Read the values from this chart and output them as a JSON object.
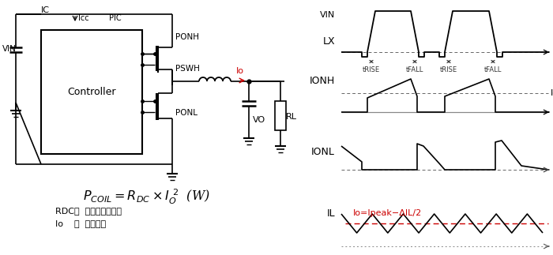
{
  "bg_color": "#ffffff",
  "red_color": "#cc0000",
  "title_IC": "IC",
  "label_VIN": "VIN",
  "label_Icc": "Icc",
  "label_PIC": "PIC",
  "label_PONH": "PONH",
  "label_PSWH": "PSWH",
  "label_Io_red": "Io",
  "label_Vo": "VO",
  "label_RL": "RL",
  "label_PONL": "PONL",
  "label_controller": "Controller",
  "note1_a": "RDC：",
  "note1_b": "电感的直流电阵",
  "note2_a": "Io    ：",
  "note2_b": "输出电流",
  "waveform_LX": "LX",
  "waveform_VIN": "VIN",
  "waveform_IONH": "IONH",
  "waveform_IONL": "IONL",
  "waveform_IL": "IL",
  "label_tRISE": "tRISE",
  "label_tFALL": "tFALL",
  "label_Io_ref": "Io",
  "label_IL_eq": "Io=Ipeak−ΔIL/2"
}
